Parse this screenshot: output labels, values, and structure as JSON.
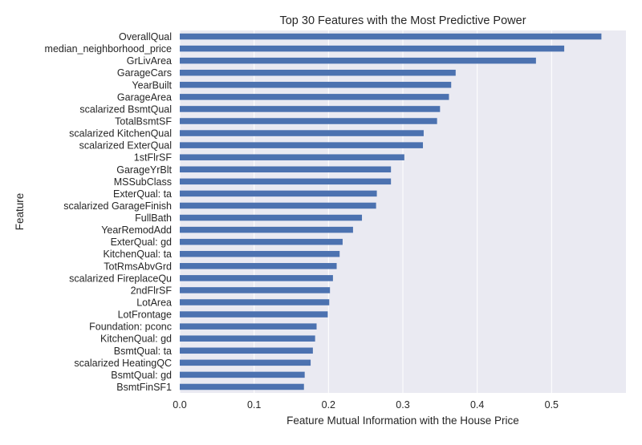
{
  "chart_data": {
    "type": "bar",
    "orientation": "horizontal",
    "title": "Top 30 Features with the Most Predictive Power",
    "xlabel": "Feature Mutual Information with the House Price",
    "ylabel": "Feature",
    "xlim": [
      0.0,
      0.6
    ],
    "xticks": [
      "0.0",
      "0.1",
      "0.2",
      "0.3",
      "0.4",
      "0.5"
    ],
    "grid": true,
    "legend": "none",
    "colors": {
      "bar": "#4c72b0",
      "plot_background": "#eaeaf2",
      "grid": "#ffffff",
      "text": "#262626"
    },
    "categories": [
      "OverallQual",
      "median_neighborhood_price",
      "GrLivArea",
      "GarageCars",
      "YearBuilt",
      "GarageArea",
      "scalarized BsmtQual",
      "TotalBsmtSF",
      "scalarized KitchenQual",
      "scalarized ExterQual",
      "1stFlrSF",
      "GarageYrBlt",
      "MSSubClass",
      "ExterQual: ta",
      "scalarized GarageFinish",
      "FullBath",
      "YearRemodAdd",
      "ExterQual: gd",
      "KitchenQual: ta",
      "TotRmsAbvGrd",
      "scalarized FireplaceQu",
      "2ndFlrSF",
      "LotArea",
      "LotFrontage",
      "Foundation: pconc",
      "KitchenQual: gd",
      "BsmtQual: ta",
      "scalarized HeatingQC",
      "BsmtQual: gd",
      "BsmtFinSF1"
    ],
    "values": [
      0.567,
      0.517,
      0.479,
      0.371,
      0.365,
      0.362,
      0.35,
      0.346,
      0.328,
      0.327,
      0.302,
      0.284,
      0.284,
      0.265,
      0.264,
      0.245,
      0.233,
      0.219,
      0.215,
      0.211,
      0.206,
      0.202,
      0.201,
      0.199,
      0.184,
      0.182,
      0.179,
      0.176,
      0.168,
      0.167
    ]
  }
}
